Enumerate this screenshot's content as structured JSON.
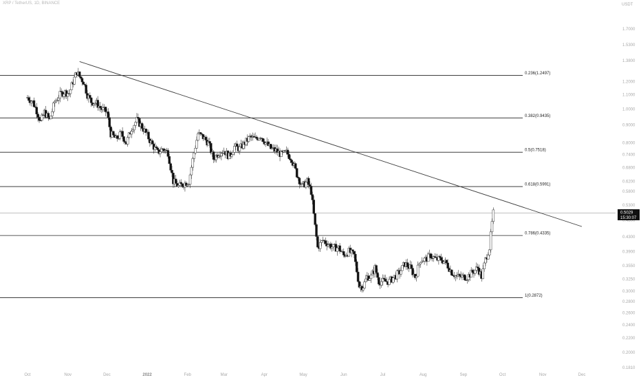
{
  "header": {
    "symbol_line": "XRP / TetherUS, 1D, BINANCE",
    "unit": "USDT"
  },
  "price_badge": {
    "price": "0.5029",
    "countdown": "15:30:07"
  },
  "colors": {
    "bull_candle": "#ffffff",
    "bear_candle": "#111111",
    "wick": "#333333",
    "fib_line": "#222222",
    "trendline": "#3a3a3a",
    "current_price_line": "#9a9a9a",
    "badge_bg": "#111111",
    "badge_text": "#ffffff",
    "axis_text": "#a8a8a8"
  },
  "chart_data": {
    "type": "candlestick",
    "title": "XRP / TetherUS, 1D, BINANCE",
    "y_axis_unit": "USDT",
    "y_scale": "log",
    "y_range": [
      0.181,
      1.82
    ],
    "x_tick_labels": [
      "Oct",
      "Nov",
      "Dec",
      "2022",
      "Feb",
      "Mar",
      "Apr",
      "May",
      "Jun",
      "Jul",
      "Aug",
      "Sep",
      "Oct",
      "Nov",
      "Dec"
    ],
    "x_tick_dates": [
      "2021-10-01",
      "2021-11-01",
      "2021-12-01",
      "2022-01-01",
      "2022-02-01",
      "2022-03-01",
      "2022-04-01",
      "2022-05-01",
      "2022-06-01",
      "2022-07-01",
      "2022-08-01",
      "2022-09-01",
      "2022-10-01",
      "2022-11-01",
      "2022-12-01"
    ],
    "y_tick_labels": [
      "1.7000",
      "1.5300",
      "1.3800",
      "1.2000",
      "1.1000",
      "1.0000",
      "0.9000",
      "0.8000",
      "0.7400",
      "0.6800",
      "0.6200",
      "0.5800",
      "0.5300",
      "0.4800",
      "0.4300",
      "0.3900",
      "0.3550",
      "0.3250",
      "0.3000",
      "0.2800",
      "0.2600",
      "0.2400",
      "0.2200",
      "0.2000",
      "0.1810"
    ],
    "fib_levels": [
      {
        "label": "0.236(1.2497)",
        "value": 1.2497
      },
      {
        "label": "0.382(0.9435)",
        "value": 0.9435
      },
      {
        "label": "0.5(0.7518)",
        "value": 0.7518
      },
      {
        "label": "0.618(0.5991)",
        "value": 0.5991
      },
      {
        "label": "0.786(0.4335)",
        "value": 0.4335
      },
      {
        "label": "1(0.2872)",
        "value": 0.2872
      }
    ],
    "trendline": {
      "start": {
        "date": "2021-11-10",
        "value": 1.37
      },
      "end": {
        "date": "2022-12-01",
        "value": 0.46
      }
    },
    "current_price": 0.5029,
    "price_path": [
      [
        "2021-10-01",
        1.08
      ],
      [
        "2021-10-05",
        1.05
      ],
      [
        "2021-10-08",
        0.99
      ],
      [
        "2021-10-11",
        0.92
      ],
      [
        "2021-10-14",
        0.98
      ],
      [
        "2021-10-18",
        0.93
      ],
      [
        "2021-10-22",
        1.05
      ],
      [
        "2021-10-26",
        1.1
      ],
      [
        "2021-10-29",
        1.12
      ],
      [
        "2021-11-02",
        1.11
      ],
      [
        "2021-11-05",
        1.2
      ],
      [
        "2021-11-08",
        1.28
      ],
      [
        "2021-11-10",
        1.24
      ],
      [
        "2021-11-13",
        1.2
      ],
      [
        "2021-11-16",
        1.1
      ],
      [
        "2021-11-19",
        1.05
      ],
      [
        "2021-11-23",
        1.04
      ],
      [
        "2021-11-27",
        1.0
      ],
      [
        "2021-12-01",
        0.98
      ],
      [
        "2021-12-04",
        0.85
      ],
      [
        "2021-12-08",
        0.82
      ],
      [
        "2021-12-12",
        0.85
      ],
      [
        "2021-12-16",
        0.8
      ],
      [
        "2021-12-20",
        0.88
      ],
      [
        "2021-12-24",
        0.93
      ],
      [
        "2021-12-28",
        0.89
      ],
      [
        "2022-01-01",
        0.84
      ],
      [
        "2022-01-05",
        0.79
      ],
      [
        "2022-01-09",
        0.75
      ],
      [
        "2022-01-13",
        0.77
      ],
      [
        "2022-01-17",
        0.75
      ],
      [
        "2022-01-21",
        0.62
      ],
      [
        "2022-01-25",
        0.6
      ],
      [
        "2022-01-29",
        0.61
      ],
      [
        "2022-02-02",
        0.62
      ],
      [
        "2022-02-06",
        0.75
      ],
      [
        "2022-02-09",
        0.85
      ],
      [
        "2022-02-13",
        0.83
      ],
      [
        "2022-02-17",
        0.8
      ],
      [
        "2022-02-21",
        0.72
      ],
      [
        "2022-02-25",
        0.75
      ],
      [
        "2022-03-01",
        0.76
      ],
      [
        "2022-03-05",
        0.73
      ],
      [
        "2022-03-09",
        0.78
      ],
      [
        "2022-03-13",
        0.77
      ],
      [
        "2022-03-17",
        0.8
      ],
      [
        "2022-03-21",
        0.83
      ],
      [
        "2022-03-25",
        0.82
      ],
      [
        "2022-03-29",
        0.84
      ],
      [
        "2022-04-02",
        0.8
      ],
      [
        "2022-04-06",
        0.77
      ],
      [
        "2022-04-10",
        0.76
      ],
      [
        "2022-04-14",
        0.74
      ],
      [
        "2022-04-18",
        0.75
      ],
      [
        "2022-04-22",
        0.72
      ],
      [
        "2022-04-26",
        0.65
      ],
      [
        "2022-04-30",
        0.6
      ],
      [
        "2022-05-04",
        0.62
      ],
      [
        "2022-05-07",
        0.58
      ],
      [
        "2022-05-10",
        0.46
      ],
      [
        "2022-05-12",
        0.4
      ],
      [
        "2022-05-16",
        0.42
      ],
      [
        "2022-05-20",
        0.41
      ],
      [
        "2022-05-24",
        0.4
      ],
      [
        "2022-05-28",
        0.4
      ],
      [
        "2022-06-01",
        0.38
      ],
      [
        "2022-06-05",
        0.39
      ],
      [
        "2022-06-09",
        0.38
      ],
      [
        "2022-06-13",
        0.31
      ],
      [
        "2022-06-16",
        0.31
      ],
      [
        "2022-06-19",
        0.33
      ],
      [
        "2022-06-22",
        0.33
      ],
      [
        "2022-06-25",
        0.35
      ],
      [
        "2022-06-28",
        0.32
      ],
      [
        "2022-07-02",
        0.32
      ],
      [
        "2022-07-06",
        0.32
      ],
      [
        "2022-07-10",
        0.33
      ],
      [
        "2022-07-14",
        0.34
      ],
      [
        "2022-07-18",
        0.36
      ],
      [
        "2022-07-22",
        0.35
      ],
      [
        "2022-07-26",
        0.33
      ],
      [
        "2022-07-30",
        0.37
      ],
      [
        "2022-08-03",
        0.37
      ],
      [
        "2022-08-07",
        0.38
      ],
      [
        "2022-08-11",
        0.37
      ],
      [
        "2022-08-15",
        0.37
      ],
      [
        "2022-08-19",
        0.36
      ],
      [
        "2022-08-23",
        0.34
      ],
      [
        "2022-08-27",
        0.33
      ],
      [
        "2022-08-31",
        0.33
      ],
      [
        "2022-09-04",
        0.33
      ],
      [
        "2022-09-08",
        0.34
      ],
      [
        "2022-09-12",
        0.35
      ],
      [
        "2022-09-15",
        0.33
      ],
      [
        "2022-09-18",
        0.37
      ],
      [
        "2022-09-21",
        0.4
      ],
      [
        "2022-09-23",
        0.47
      ],
      [
        "2022-09-24",
        0.5029
      ]
    ]
  }
}
